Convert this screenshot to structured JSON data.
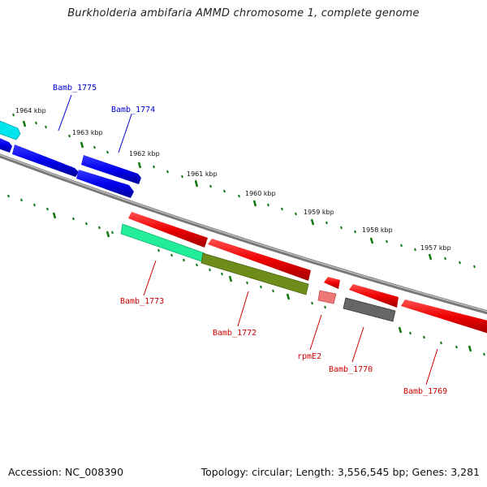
{
  "title": "Burkholderia ambifaria AMMD chromosome 1, complete genome",
  "footer": {
    "accession": "Accession: NC_008390",
    "summary": "Topology: circular; Length: 3,556,545 bp; Genes: 3,281"
  },
  "colors": {
    "backbone": "#888888",
    "forward_label": "#0000cc",
    "reverse_label": "#cc0000",
    "tick": "#117711"
  },
  "scale_labels": [
    "1964 kbp",
    "1963 kbp",
    "1962 kbp",
    "1961 kbp",
    "1960 kbp",
    "1959 kbp",
    "1958 kbp",
    "1957 kbp"
  ],
  "gene_labels": [
    {
      "name": "Bamb_1775",
      "strand": "forward"
    },
    {
      "name": "Bamb_1774",
      "strand": "forward"
    },
    {
      "name": "Bamb_1773",
      "strand": "reverse"
    },
    {
      "name": "Bamb_1772",
      "strand": "reverse"
    },
    {
      "name": "rpmE2",
      "strand": "reverse"
    },
    {
      "name": "Bamb_1770",
      "strand": "reverse"
    },
    {
      "name": "Bamb_1769",
      "strand": "reverse"
    }
  ]
}
